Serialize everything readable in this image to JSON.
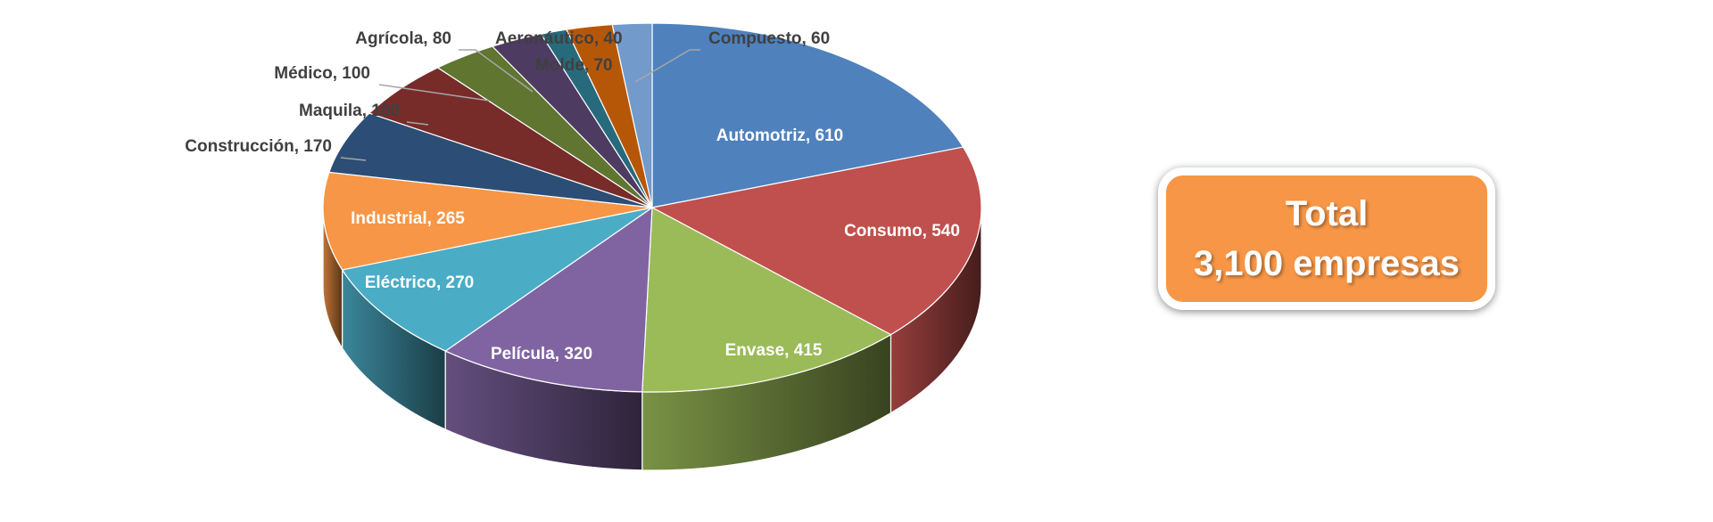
{
  "chart_data": {
    "type": "pie",
    "style": "3d",
    "categories": [
      "Automotriz",
      "Consumo",
      "Envase",
      "Película",
      "Eléctrico",
      "Industrial",
      "Construcción",
      "Maquila",
      "Médico",
      "Agrícola",
      "Aeronáutico",
      "Molde",
      "Compuesto"
    ],
    "values": [
      610,
      540,
      415,
      320,
      270,
      265,
      170,
      160,
      100,
      80,
      40,
      70,
      60
    ],
    "labels": [
      "Automotriz, 610",
      "Consumo, 540",
      "Envase, 415",
      "Película, 320",
      "Eléctrico, 270",
      "Industrial, 265",
      "Construcción, 170",
      "Maquila, 160",
      "Médico, 100",
      "Agrícola, 80",
      "Aeronáutico, 40",
      "Molde, 70",
      "Compuesto, 60"
    ],
    "colors": [
      "#4f81bd",
      "#c0504d",
      "#9bbb59",
      "#8064a2",
      "#4bacc6",
      "#f79646",
      "#2c4d75",
      "#772c2a",
      "#5f7530",
      "#4d3b62",
      "#276a7c",
      "#b65708",
      "#729aca"
    ],
    "legend": "none"
  },
  "total_box": {
    "line1": "Total",
    "line2": "3,100 empresas",
    "color": "#f79646"
  }
}
